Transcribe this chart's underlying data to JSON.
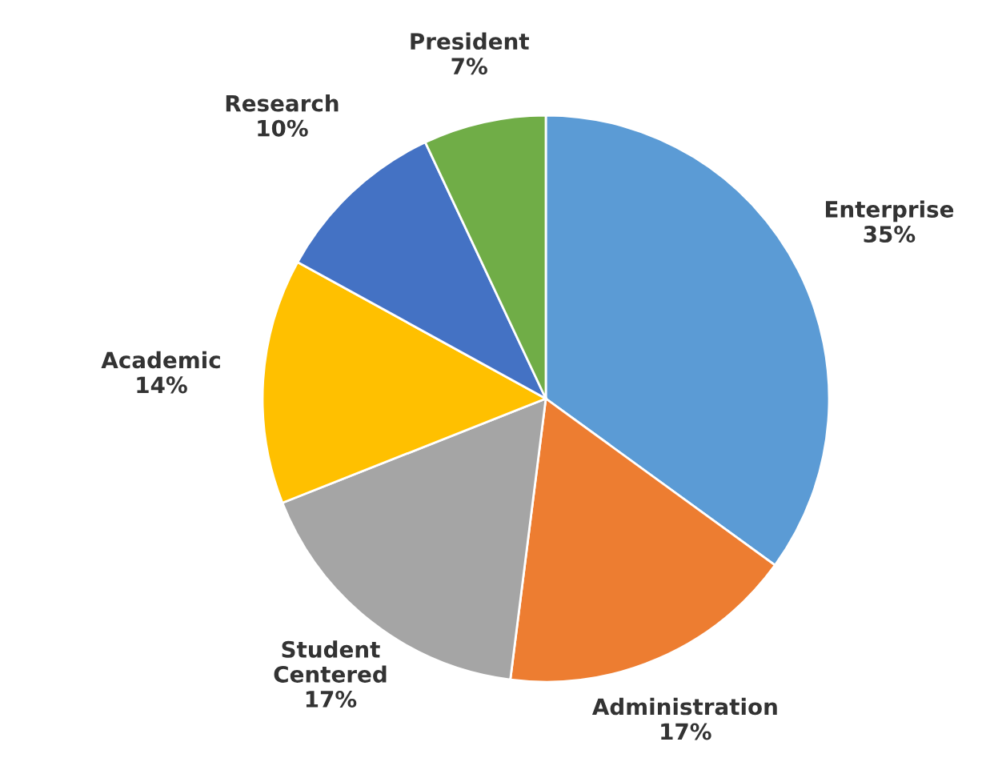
{
  "chart_data": {
    "type": "pie",
    "categories": [
      "Enterprise",
      "Administration",
      "Student\nCentered",
      "Academic",
      "Research",
      "President"
    ],
    "values": [
      35,
      17,
      17,
      14,
      10,
      7
    ],
    "value_labels": [
      "35%",
      "17%",
      "17%",
      "14%",
      "10%",
      "7%"
    ],
    "colors": [
      "#5b9bd5",
      "#ed7d31",
      "#a5a5a5",
      "#ffc000",
      "#4472c4",
      "#70ad47"
    ]
  }
}
